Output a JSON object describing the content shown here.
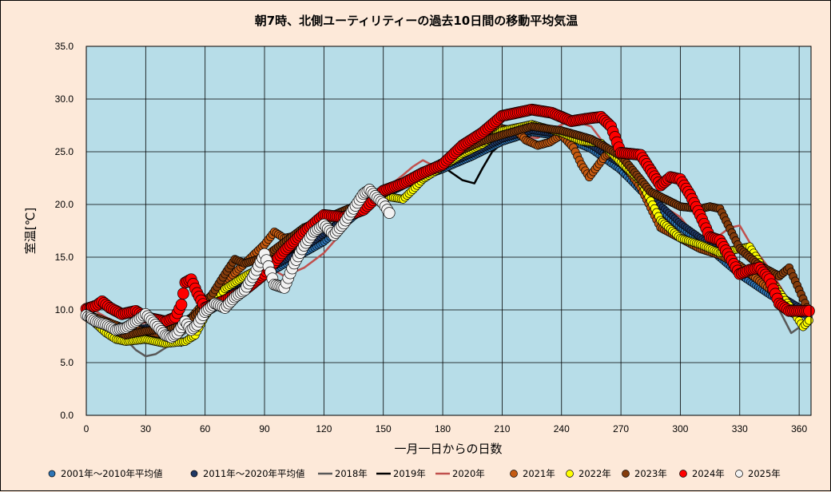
{
  "chart_data": {
    "type": "scatter",
    "title": "朝7時、北側ユーティリティーの過去10日間の移動平均気温",
    "xlabel": "一月一日からの日数",
    "ylabel": "室温[℃]",
    "xlim": [
      0,
      366
    ],
    "ylim": [
      0,
      35
    ],
    "xticks": [
      "0",
      "30",
      "60",
      "90",
      "120",
      "150",
      "180",
      "210",
      "240",
      "270",
      "300",
      "330",
      "360"
    ],
    "yticks": [
      "0.0",
      "5.0",
      "10.0",
      "15.0",
      "20.0",
      "25.0",
      "30.0",
      "35.0"
    ],
    "grid": true,
    "legend_position": "bottom",
    "plot_background": "#b7dde8",
    "series": [
      {
        "name": "2001年～2010年平均値",
        "style": "marker",
        "color": "#2e75b6",
        "size": 4,
        "x": [
          0,
          10,
          20,
          30,
          40,
          50,
          60,
          75,
          90,
          105,
          120,
          135,
          150,
          165,
          180,
          195,
          210,
          225,
          240,
          255,
          270,
          285,
          300,
          315,
          330,
          345,
          365
        ],
        "y": [
          9.3,
          8.2,
          7.8,
          7.8,
          8.0,
          8.4,
          9.6,
          11.3,
          13.2,
          14.8,
          16.4,
          18.8,
          20.8,
          22.2,
          23.3,
          24.5,
          25.9,
          26.8,
          26.4,
          25.2,
          23.2,
          20.3,
          17.8,
          15.7,
          13.3,
          11.4,
          9.3
        ]
      },
      {
        "name": "2011年～2020年平均値",
        "style": "marker",
        "color": "#1f3864",
        "size": 4,
        "x": [
          0,
          10,
          20,
          30,
          40,
          50,
          60,
          75,
          90,
          105,
          120,
          135,
          150,
          165,
          180,
          195,
          210,
          225,
          240,
          255,
          270,
          285,
          300,
          315,
          330,
          345,
          365
        ],
        "y": [
          9.6,
          8.6,
          8.2,
          8.3,
          8.6,
          9.0,
          10.2,
          11.8,
          13.6,
          15.2,
          17.2,
          19.4,
          21.3,
          22.6,
          23.6,
          24.8,
          26.2,
          27.0,
          26.6,
          25.6,
          23.8,
          20.8,
          18.2,
          16.2,
          14.0,
          12.0,
          9.7
        ]
      },
      {
        "name": "2018年",
        "style": "line",
        "color": "#595959",
        "width": 2.5,
        "x": [
          0,
          10,
          20,
          25,
          30,
          35,
          40,
          50,
          55,
          60,
          75,
          90,
          105,
          120,
          135,
          150,
          165,
          180,
          195,
          205,
          215,
          230,
          240,
          250,
          260,
          270,
          280,
          290,
          300,
          315,
          330,
          340,
          345,
          350,
          356,
          365
        ],
        "y": [
          9.8,
          8.6,
          7.2,
          6.2,
          5.6,
          5.8,
          6.4,
          7.8,
          9.4,
          10.2,
          11.8,
          13.8,
          15.8,
          17.6,
          19.6,
          21.4,
          22.8,
          23.8,
          25.2,
          26.9,
          27.4,
          27.2,
          26.7,
          25.9,
          25.0,
          22.8,
          21.2,
          19.2,
          17.2,
          16.2,
          13.6,
          12.4,
          11.4,
          10.0,
          7.8,
          9.0
        ]
      },
      {
        "name": "2019年",
        "style": "line",
        "color": "#000000",
        "width": 2.5,
        "x": [
          0,
          10,
          20,
          30,
          40,
          48,
          55,
          60,
          75,
          90,
          105,
          120,
          135,
          150,
          165,
          180,
          190,
          196,
          200,
          205,
          215,
          230,
          240,
          250,
          260,
          270,
          285,
          300,
          315,
          330,
          345,
          356,
          365
        ],
        "y": [
          9.8,
          8.8,
          8.2,
          7.8,
          7.4,
          6.6,
          8.4,
          10.0,
          11.6,
          13.8,
          15.6,
          17.6,
          19.6,
          21.3,
          22.4,
          23.6,
          22.3,
          22.0,
          23.4,
          25.0,
          26.6,
          27.2,
          26.8,
          26.1,
          25.0,
          23.0,
          20.4,
          18.0,
          15.6,
          13.4,
          11.4,
          9.4,
          9.6
        ]
      },
      {
        "name": "2020年",
        "style": "line",
        "color": "#c0504d",
        "width": 2.5,
        "x": [
          0,
          10,
          20,
          30,
          40,
          50,
          60,
          75,
          90,
          100,
          110,
          120,
          135,
          150,
          160,
          165,
          170,
          175,
          180,
          190,
          200,
          210,
          220,
          228,
          236,
          245,
          255,
          265,
          275,
          285,
          290,
          295,
          300,
          305,
          315,
          325,
          330,
          335,
          345,
          355,
          365
        ],
        "y": [
          10.4,
          9.3,
          8.4,
          8.8,
          8.6,
          8.8,
          10.3,
          12.3,
          14.3,
          13.2,
          14.0,
          15.4,
          18.6,
          21.3,
          22.8,
          23.6,
          24.2,
          23.7,
          23.5,
          25.0,
          26.6,
          26.7,
          26.4,
          26.3,
          27.2,
          28.0,
          27.4,
          24.9,
          22.4,
          20.7,
          19.5,
          19.4,
          18.8,
          17.6,
          16.4,
          17.8,
          18.0,
          16.4,
          13.9,
          10.8,
          9.6
        ]
      },
      {
        "name": "2021年",
        "style": "marker",
        "color": "#c55a11",
        "size": 5,
        "x": [
          0,
          10,
          20,
          30,
          40,
          50,
          60,
          70,
          80,
          90,
          95,
          100,
          110,
          120,
          135,
          150,
          165,
          180,
          190,
          200,
          210,
          218,
          222,
          228,
          234,
          240,
          246,
          250,
          254,
          258,
          262,
          266,
          270,
          280,
          290,
          300,
          310,
          320,
          330,
          345,
          360
        ],
        "y": [
          9.6,
          8.9,
          8.2,
          8.0,
          7.6,
          8.6,
          10.8,
          12.6,
          14.4,
          16.2,
          17.4,
          16.8,
          17.2,
          18.4,
          19.8,
          21.4,
          22.5,
          23.8,
          25.6,
          26.6,
          27.2,
          26.9,
          26.1,
          25.6,
          25.9,
          26.6,
          25.4,
          23.8,
          22.6,
          23.6,
          24.6,
          25.0,
          24.2,
          21.6,
          17.8,
          16.8,
          15.8,
          15.2,
          14.2,
          12.0,
          9.6
        ]
      },
      {
        "name": "2022年",
        "style": "marker",
        "color": "#ffff00",
        "size": 5,
        "x": [
          0,
          10,
          15,
          20,
          30,
          40,
          50,
          55,
          60,
          70,
          80,
          90,
          100,
          110,
          120,
          135,
          150,
          160,
          165,
          170,
          180,
          190,
          200,
          210,
          225,
          240,
          250,
          260,
          270,
          280,
          290,
          300,
          310,
          320,
          330,
          335,
          345,
          355,
          362,
          365
        ],
        "y": [
          9.5,
          7.8,
          7.2,
          7.0,
          7.2,
          6.8,
          7.0,
          7.6,
          9.4,
          12.0,
          13.2,
          14.2,
          16.4,
          17.0,
          18.6,
          19.6,
          20.8,
          20.5,
          21.4,
          22.4,
          23.6,
          24.8,
          25.7,
          27.0,
          27.6,
          26.8,
          26.0,
          25.8,
          24.0,
          22.2,
          18.5,
          16.8,
          16.2,
          15.4,
          15.8,
          16.0,
          13.0,
          10.4,
          8.4,
          9.0
        ]
      },
      {
        "name": "2023年",
        "style": "marker",
        "color": "#843c0c",
        "size": 5,
        "x": [
          0,
          10,
          20,
          30,
          40,
          50,
          60,
          70,
          75,
          80,
          90,
          100,
          110,
          120,
          135,
          150,
          165,
          180,
          190,
          200,
          210,
          225,
          240,
          255,
          270,
          285,
          300,
          310,
          315,
          320,
          330,
          340,
          350,
          355,
          365
        ],
        "y": [
          9.6,
          8.4,
          7.6,
          8.0,
          8.2,
          8.6,
          10.4,
          13.4,
          14.8,
          14.4,
          15.0,
          16.4,
          17.8,
          18.6,
          19.8,
          21.0,
          22.6,
          24.0,
          25.2,
          26.0,
          26.6,
          27.4,
          27.0,
          26.2,
          24.6,
          21.2,
          19.8,
          19.6,
          19.8,
          19.6,
          15.8,
          14.2,
          13.2,
          14.0,
          9.8
        ]
      },
      {
        "name": "2024年",
        "style": "marker",
        "color": "#ff0000",
        "size": 7,
        "x": [
          0,
          5,
          8,
          12,
          18,
          25,
          30,
          40,
          45,
          48,
          50,
          53,
          56,
          60,
          70,
          80,
          90,
          100,
          110,
          120,
          130,
          140,
          150,
          160,
          170,
          180,
          190,
          200,
          210,
          215,
          225,
          235,
          245,
          255,
          260,
          265,
          270,
          280,
          290,
          295,
          300,
          305,
          310,
          315,
          320,
          330,
          335,
          340,
          345,
          350,
          355,
          360,
          365
        ],
        "y": [
          10.1,
          10.4,
          10.8,
          10.2,
          9.6,
          9.9,
          9.3,
          8.9,
          9.3,
          10.5,
          12.6,
          12.9,
          11.6,
          10.2,
          10.9,
          11.9,
          13.4,
          15.6,
          17.4,
          19.0,
          18.8,
          19.5,
          21.3,
          22.0,
          23.0,
          23.8,
          25.6,
          26.8,
          28.4,
          28.6,
          29.0,
          28.7,
          27.9,
          28.2,
          28.3,
          27.4,
          24.9,
          24.7,
          21.8,
          22.6,
          22.4,
          20.9,
          19.0,
          16.9,
          16.6,
          13.4,
          13.8,
          14.0,
          12.9,
          10.6,
          9.9,
          9.9,
          9.9
        ]
      },
      {
        "name": "2025年",
        "style": "marker",
        "color": "#f2f2f2",
        "size": 7,
        "x": [
          0,
          5,
          10,
          15,
          20,
          25,
          30,
          35,
          40,
          43,
          46,
          50,
          53,
          56,
          60,
          65,
          70,
          75,
          80,
          85,
          90,
          95,
          100,
          105,
          110,
          115,
          120,
          125,
          130,
          135,
          140,
          143,
          146,
          150,
          153
        ],
        "y": [
          9.5,
          8.9,
          8.6,
          8.1,
          8.3,
          8.9,
          9.6,
          8.6,
          7.6,
          7.4,
          7.8,
          8.9,
          8.1,
          8.6,
          9.8,
          10.6,
          10.2,
          11.2,
          11.9,
          13.4,
          15.3,
          12.4,
          12.1,
          14.4,
          16.1,
          17.4,
          18.1,
          17.1,
          18.2,
          19.6,
          21.0,
          21.4,
          20.8,
          20.1,
          19.2
        ]
      }
    ]
  }
}
